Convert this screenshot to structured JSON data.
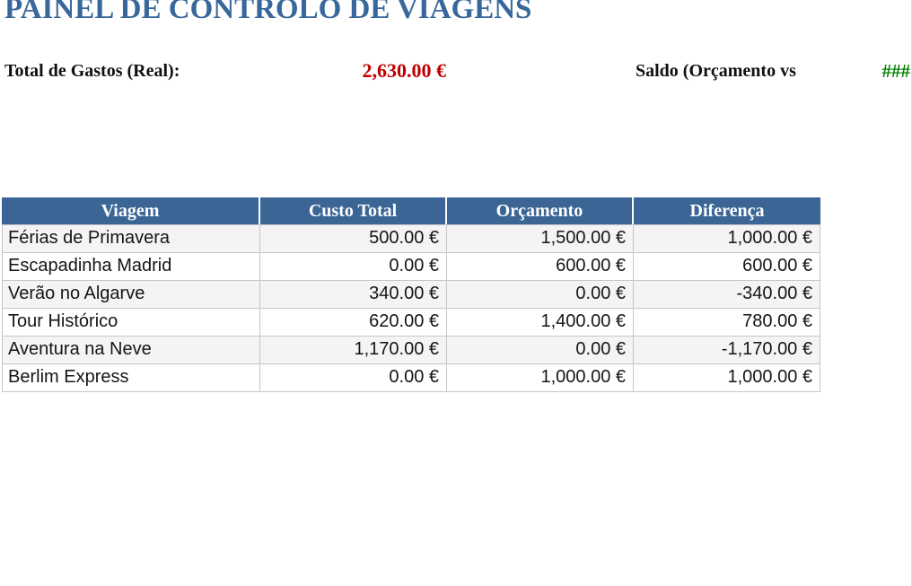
{
  "page_title": "PAINEL DE CONTROLO DE VIAGENS",
  "colors": {
    "title_blue": "#38679B",
    "header_blue": "#3A6595",
    "total_red": "#C00000",
    "saldo_green": "#008000",
    "row_stripe": "#F4F4F4",
    "grid_line": "#C6C6C6"
  },
  "summary": {
    "total_label": "Total de Gastos (Real):",
    "total_value": "2,630.00 €",
    "saldo_label": "Saldo (Orçamento vs",
    "saldo_value": "###"
  },
  "table": {
    "columns": [
      "Viagem",
      "Custo Total",
      "Orçamento",
      "Diferença"
    ],
    "rows": [
      {
        "viagem": "Férias de Primavera",
        "custo_total": "500.00 €",
        "orcamento": "1,500.00 €",
        "diferenca": "1,000.00 €"
      },
      {
        "viagem": "Escapadinha Madrid",
        "custo_total": "0.00 €",
        "orcamento": "600.00 €",
        "diferenca": "600.00 €"
      },
      {
        "viagem": "Verão no Algarve",
        "custo_total": "340.00 €",
        "orcamento": "0.00 €",
        "diferenca": "-340.00 €"
      },
      {
        "viagem": "Tour Histórico",
        "custo_total": "620.00 €",
        "orcamento": "1,400.00 €",
        "diferenca": "780.00 €"
      },
      {
        "viagem": "Aventura na Neve",
        "custo_total": "1,170.00 €",
        "orcamento": "0.00 €",
        "diferenca": "-1,170.00 €"
      },
      {
        "viagem": "Berlim Express",
        "custo_total": "0.00 €",
        "orcamento": "1,000.00 €",
        "diferenca": "1,000.00 €"
      }
    ]
  }
}
